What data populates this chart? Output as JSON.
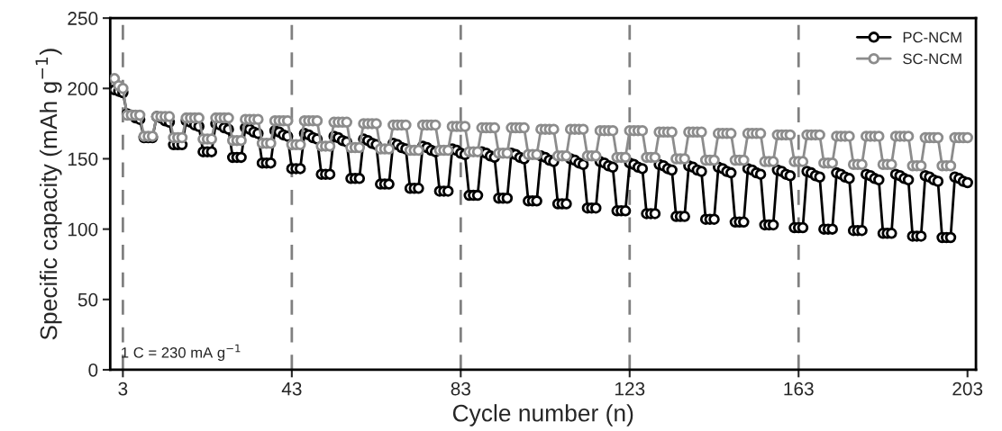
{
  "chart_data": {
    "type": "line",
    "xlabel": "Cycle number (n)",
    "ylabel": "Specific capacity (mAh g$^{−1}$)",
    "annotations": [
      "1 C = 230 mA g$^{−1}$"
    ],
    "x": [
      1,
      2,
      3,
      4,
      5,
      6,
      7,
      8,
      9,
      10,
      11,
      12,
      13,
      14,
      15,
      16,
      17,
      18,
      19,
      20,
      21,
      22,
      23,
      24,
      25,
      26,
      27,
      28,
      29,
      30,
      31,
      32,
      33,
      34,
      35,
      36,
      37,
      38,
      39,
      40,
      41,
      42,
      43,
      44,
      45,
      46,
      47,
      48,
      49,
      50,
      51,
      52,
      53,
      54,
      55,
      56,
      57,
      58,
      59,
      60,
      61,
      62,
      63,
      64,
      65,
      66,
      67,
      68,
      69,
      70,
      71,
      72,
      73,
      74,
      75,
      76,
      77,
      78,
      79,
      80,
      81,
      82,
      83,
      84,
      85,
      86,
      87,
      88,
      89,
      90,
      91,
      92,
      93,
      94,
      95,
      96,
      97,
      98,
      99,
      100,
      101,
      102,
      103,
      104,
      105,
      106,
      107,
      108,
      109,
      110,
      111,
      112,
      113,
      114,
      115,
      116,
      117,
      118,
      119,
      120,
      121,
      122,
      123,
      124,
      125,
      126,
      127,
      128,
      129,
      130,
      131,
      132,
      133,
      134,
      135,
      136,
      137,
      138,
      139,
      140,
      141,
      142,
      143,
      144,
      145,
      146,
      147,
      148,
      149,
      150,
      151,
      152,
      153,
      154,
      155,
      156,
      157,
      158,
      159,
      160,
      161,
      162,
      163,
      164,
      165,
      166,
      167,
      168,
      169,
      170,
      171,
      172,
      173,
      174,
      175,
      176,
      177,
      178,
      179,
      180,
      181,
      182,
      183,
      184,
      185,
      186,
      187,
      188,
      189,
      190,
      191,
      192,
      193,
      194,
      195,
      196,
      197,
      198,
      199,
      200,
      201,
      202,
      203
    ],
    "series": [
      {
        "name": "PC-NCM",
        "color": "#000000",
        "values": [
          199,
          198,
          197,
          182,
          181,
          179,
          178,
          165,
          165,
          165,
          180,
          179,
          177,
          176,
          160,
          160,
          160,
          177,
          176,
          174,
          173,
          155,
          155,
          155,
          175,
          174,
          172,
          171,
          151,
          151,
          151,
          172,
          171,
          169,
          168,
          147,
          147,
          147,
          170,
          169,
          167,
          166,
          143,
          143,
          143,
          168,
          167,
          165,
          164,
          139,
          139,
          139,
          166,
          165,
          163,
          162,
          136,
          136,
          136,
          164,
          163,
          161,
          160,
          132,
          132,
          132,
          161,
          160,
          158,
          157,
          129,
          129,
          129,
          159,
          158,
          156,
          155,
          127,
          127,
          127,
          157,
          156,
          154,
          153,
          124,
          124,
          124,
          155,
          154,
          152,
          151,
          122,
          122,
          122,
          154,
          153,
          151,
          150,
          120,
          120,
          120,
          152,
          151,
          149,
          148,
          118,
          118,
          118,
          150,
          149,
          147,
          146,
          115,
          115,
          115,
          148,
          147,
          145,
          144,
          113,
          113,
          113,
          147,
          146,
          144,
          143,
          111,
          111,
          111,
          146,
          145,
          143,
          142,
          109,
          109,
          109,
          145,
          144,
          142,
          141,
          107,
          107,
          107,
          144,
          143,
          141,
          140,
          105,
          105,
          105,
          143,
          142,
          140,
          139,
          103,
          103,
          103,
          142,
          141,
          139,
          138,
          101,
          101,
          101,
          141,
          140,
          138,
          137,
          100,
          100,
          100,
          140,
          139,
          137,
          136,
          99,
          99,
          99,
          139,
          138,
          136,
          135,
          97,
          97,
          97,
          139,
          138,
          136,
          135,
          95,
          95,
          95,
          138,
          137,
          135,
          134,
          94,
          94,
          94,
          137,
          136,
          134,
          133
        ]
      },
      {
        "name": "SC-NCM",
        "color": "#8c8c8c",
        "values": [
          207,
          202,
          200,
          181,
          181,
          181,
          181,
          166,
          166,
          166,
          180,
          180,
          180,
          180,
          165,
          165,
          165,
          179,
          179,
          179,
          179,
          164,
          164,
          164,
          179,
          179,
          179,
          179,
          163,
          163,
          163,
          178,
          178,
          178,
          178,
          161,
          161,
          161,
          177,
          177,
          177,
          177,
          160,
          160,
          160,
          177,
          177,
          177,
          177,
          159,
          159,
          159,
          176,
          176,
          176,
          176,
          158,
          158,
          158,
          175,
          175,
          175,
          175,
          157,
          157,
          157,
          174,
          174,
          174,
          174,
          156,
          156,
          156,
          174,
          174,
          174,
          174,
          156,
          156,
          156,
          173,
          173,
          173,
          173,
          155,
          155,
          155,
          172,
          172,
          172,
          172,
          154,
          154,
          154,
          172,
          172,
          172,
          172,
          153,
          153,
          153,
          171,
          171,
          171,
          171,
          152,
          152,
          152,
          171,
          171,
          171,
          171,
          152,
          152,
          152,
          170,
          170,
          170,
          170,
          151,
          151,
          151,
          170,
          170,
          170,
          170,
          151,
          151,
          151,
          169,
          169,
          169,
          169,
          150,
          150,
          150,
          169,
          169,
          169,
          169,
          149,
          149,
          149,
          168,
          168,
          168,
          168,
          149,
          149,
          149,
          168,
          168,
          168,
          168,
          148,
          148,
          148,
          167,
          167,
          167,
          167,
          148,
          148,
          148,
          167,
          167,
          167,
          167,
          147,
          147,
          147,
          166,
          166,
          166,
          166,
          146,
          146,
          146,
          166,
          166,
          166,
          166,
          146,
          146,
          146,
          166,
          166,
          166,
          166,
          145,
          145,
          145,
          165,
          165,
          165,
          165,
          145,
          145,
          145,
          165,
          165,
          165,
          165
        ]
      }
    ],
    "xlim": [
      0,
      205
    ],
    "xticks": [
      3,
      43,
      83,
      123,
      163,
      203
    ],
    "ylim": [
      0,
      250
    ],
    "yticks": [
      0,
      50,
      100,
      150,
      200,
      250
    ],
    "ref_lines": [
      {
        "axis": "x",
        "value": 3,
        "color": "#808080",
        "line_style": "dashed"
      },
      {
        "axis": "x",
        "value": 43,
        "color": "#808080",
        "line_style": "dashed"
      },
      {
        "axis": "x",
        "value": 83,
        "color": "#808080",
        "line_style": "dashed"
      },
      {
        "axis": "x",
        "value": 123,
        "color": "#808080",
        "line_style": "dashed"
      },
      {
        "axis": "x",
        "value": 163,
        "color": "#808080",
        "line_style": "dashed"
      }
    ],
    "marker": "circle",
    "line_style": "solid",
    "grid": false,
    "legend": "top right"
  }
}
